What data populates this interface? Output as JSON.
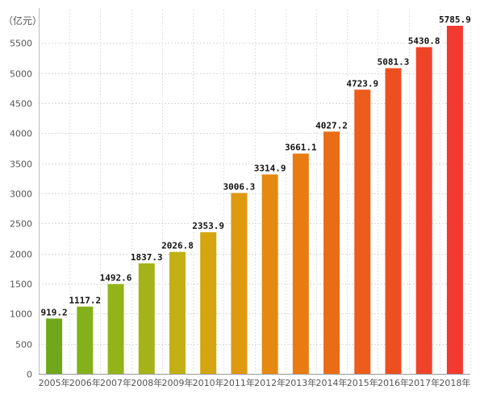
{
  "chart_data": {
    "type": "bar",
    "title": "",
    "xlabel": "",
    "ylabel": "（亿元）",
    "ylim": [
      0,
      5785.9
    ],
    "yticks": [
      0,
      500,
      1000,
      1500,
      2000,
      2500,
      3000,
      3500,
      4000,
      4500,
      5000,
      5500
    ],
    "grid": true,
    "categories": [
      "2005年",
      "2006年",
      "2007年",
      "2008年",
      "2009年",
      "2010年",
      "2011年",
      "2012年",
      "2013年",
      "2014年",
      "2015年",
      "2016年",
      "2017年",
      "2018年"
    ],
    "values": [
      919.2,
      1117.2,
      1492.6,
      1837.3,
      2026.8,
      2353.9,
      3006.3,
      3314.9,
      3661.1,
      4027.2,
      4723.9,
      5081.3,
      5430.8,
      5785.9
    ],
    "value_labels": [
      "919.2",
      "1117.2",
      "1492.6",
      "1837.3",
      "2026.8",
      "2353.9",
      "3006.3",
      "3314.9",
      "3661.1",
      "4027.2",
      "4723.9",
      "5081.3",
      "5430.8",
      "5785.9"
    ],
    "bar_colors": [
      "#6fa81c",
      "#84b11b",
      "#93b419",
      "#a6b318",
      "#c2b014",
      "#d5a510",
      "#e0980e",
      "#e5890f",
      "#e87b12",
      "#ea6c16",
      "#ec5c1a",
      "#ee4f20",
      "#f04428",
      "#f23a30"
    ]
  }
}
